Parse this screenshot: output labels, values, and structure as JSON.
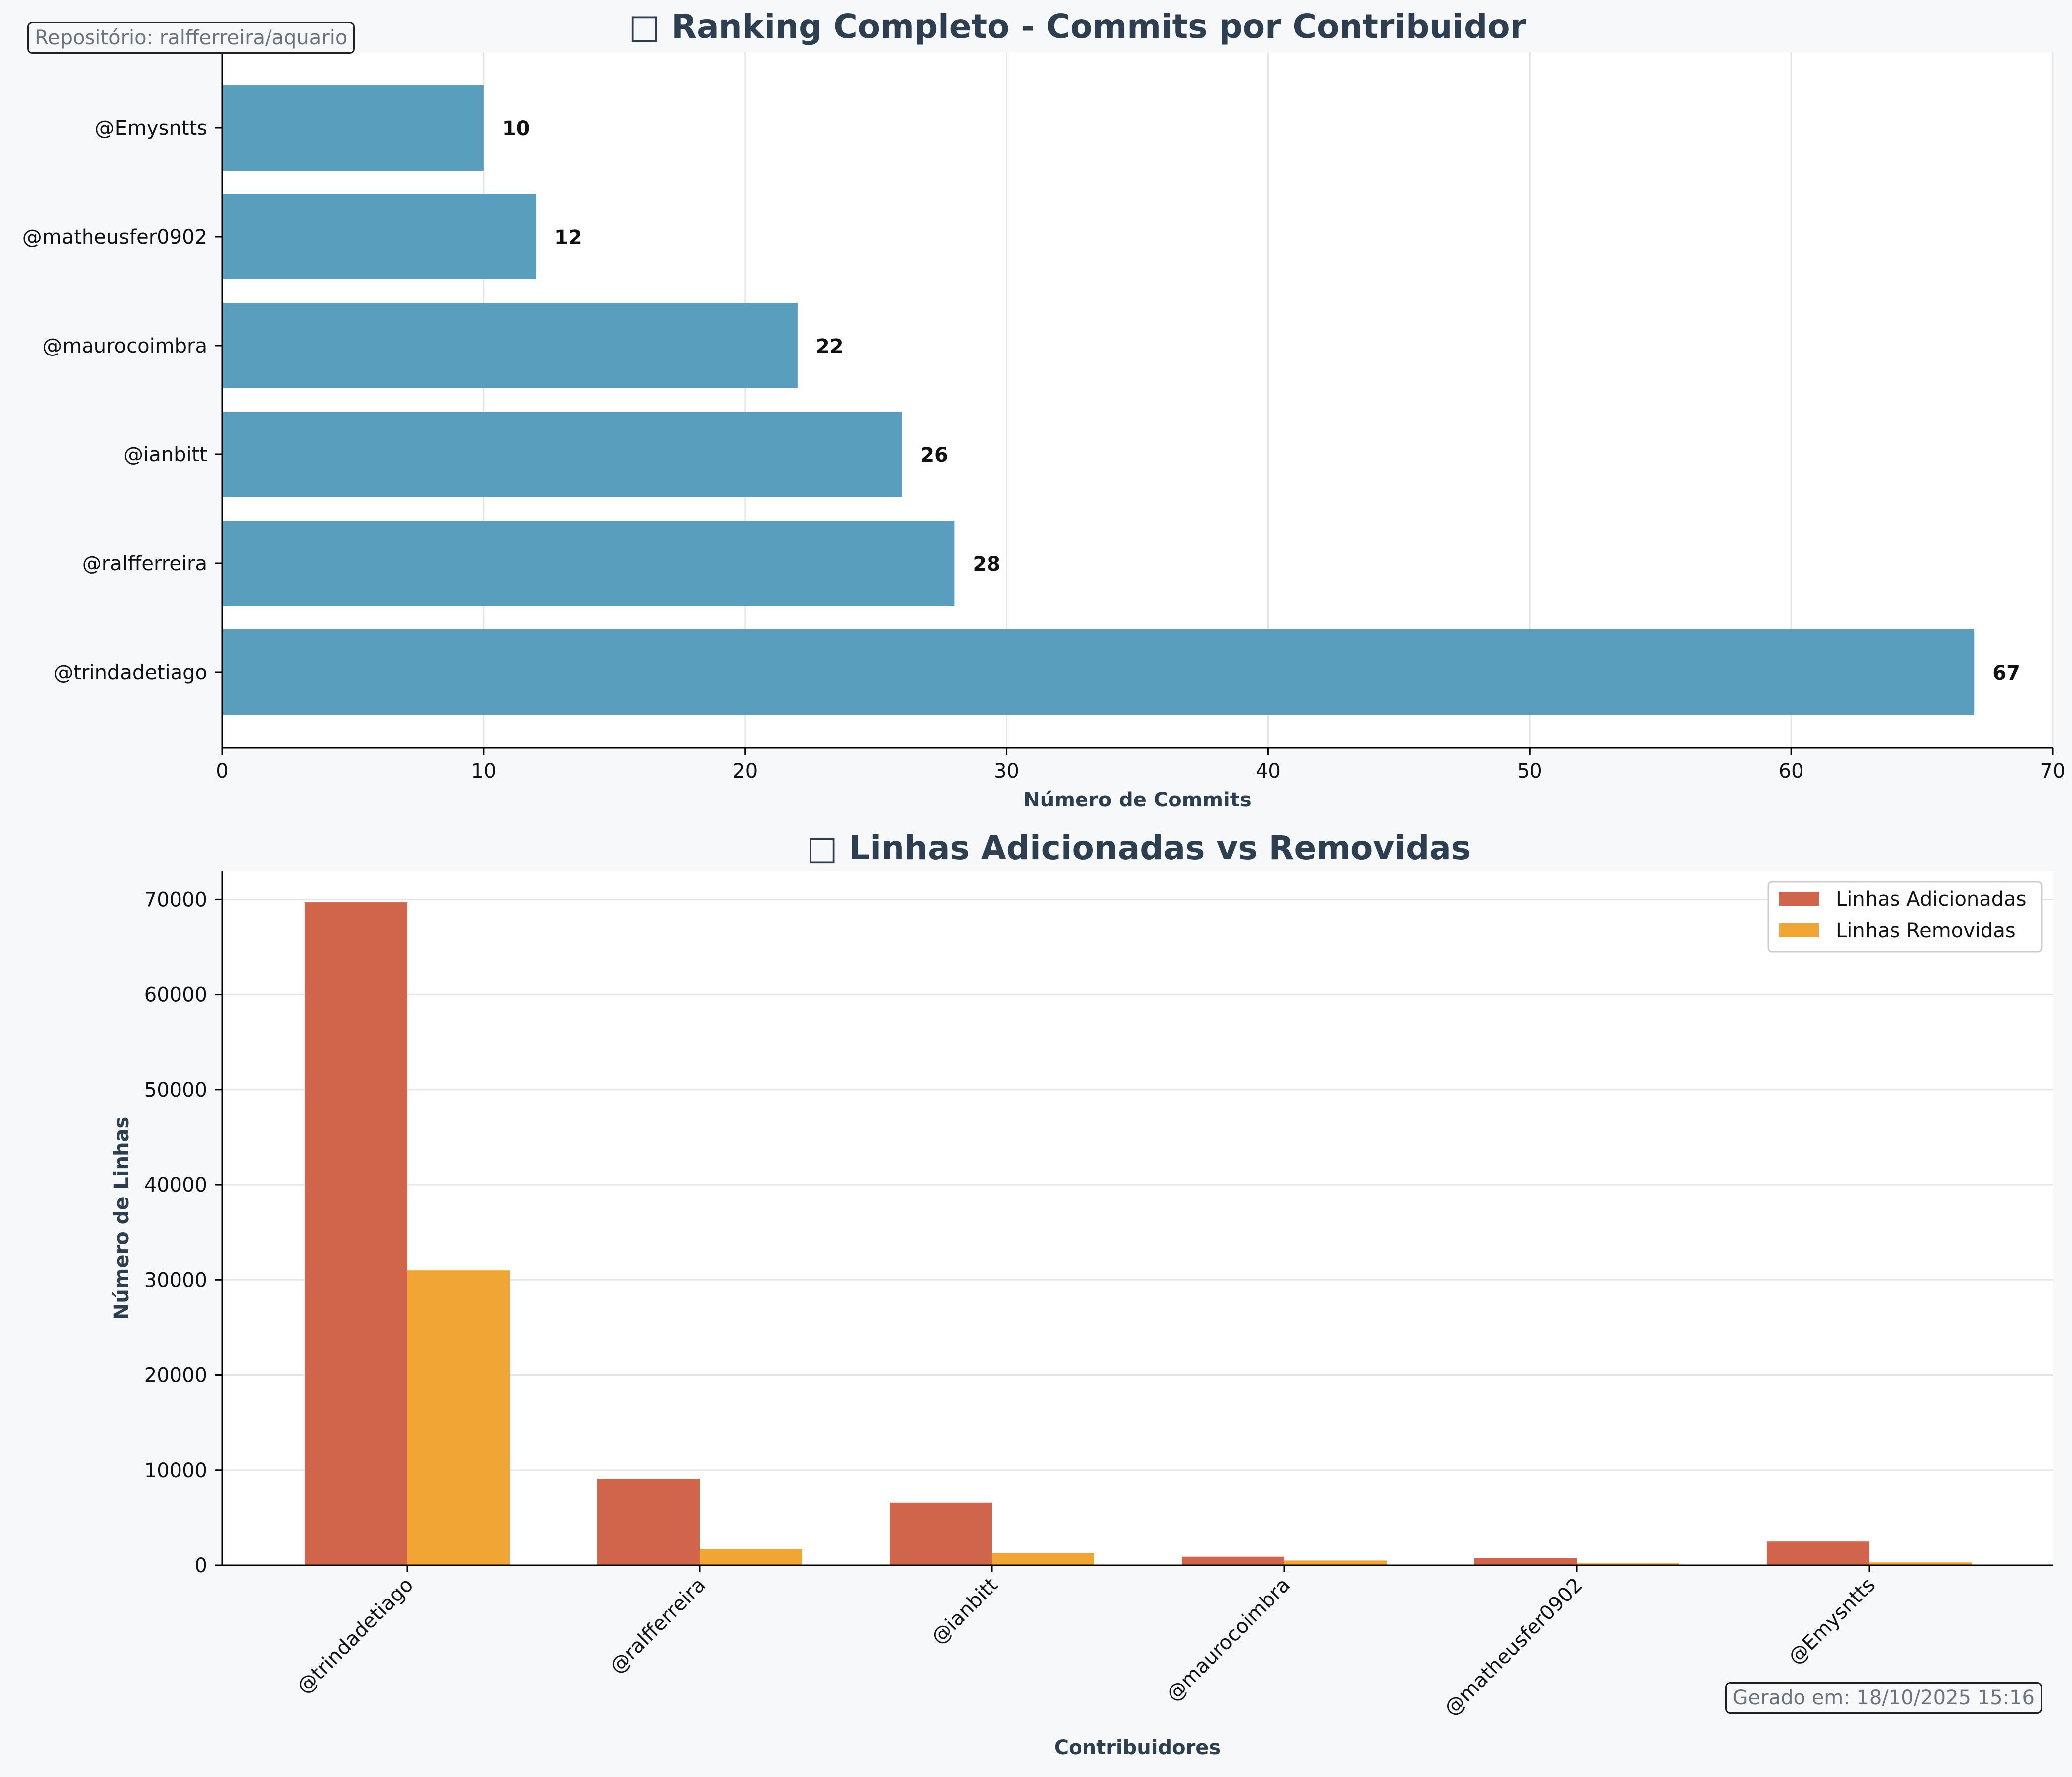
{
  "repo_label": "Repositório: ralfferreira/aquario",
  "footer_label": "Gerado em: 18/10/2025 15:16",
  "colors": {
    "background": "#f6f8fa",
    "plot_bg": "#ffffff",
    "commit_bar": "#5a9ebd",
    "lines_added": "#d1654b",
    "lines_removed": "#f1a535",
    "title": "#2c3e50",
    "grid": "#e6e6e6"
  },
  "chart_data": [
    {
      "type": "bar",
      "orientation": "horizontal",
      "title_icon": "□",
      "title": "Ranking Completo - Commits por Contribuidor",
      "xlabel": "Número de Commits",
      "ylabel": "",
      "categories": [
        "@trindadetiago",
        "@ralfferreira",
        "@ianbitt",
        "@maurocoimbra",
        "@matheusfer0902",
        "@Emysntts"
      ],
      "values": [
        67,
        28,
        26,
        22,
        12,
        10
      ],
      "xlim": [
        0,
        70
      ],
      "xticks": [
        0,
        10,
        20,
        30,
        40,
        50,
        60,
        70
      ],
      "grid": "vertical",
      "data_labels": true
    },
    {
      "type": "bar",
      "orientation": "vertical",
      "title_icon": "□",
      "title": "Linhas Adicionadas vs Removidas",
      "xlabel": "Contribuidores",
      "ylabel": "Número de Linhas",
      "categories": [
        "@trindadetiago",
        "@ralfferreira",
        "@ianbitt",
        "@maurocoimbra",
        "@matheusfer0902",
        "@Emysntts"
      ],
      "series": [
        {
          "name": "Linhas Adicionadas",
          "values": [
            69700,
            9100,
            6600,
            900,
            750,
            2500
          ]
        },
        {
          "name": "Linhas Removidas",
          "values": [
            31000,
            1700,
            1300,
            500,
            200,
            300
          ]
        }
      ],
      "ylim": [
        0,
        73000
      ],
      "yticks": [
        0,
        10000,
        20000,
        30000,
        40000,
        50000,
        60000,
        70000
      ],
      "grid": "horizontal",
      "legend": "top-right"
    }
  ]
}
